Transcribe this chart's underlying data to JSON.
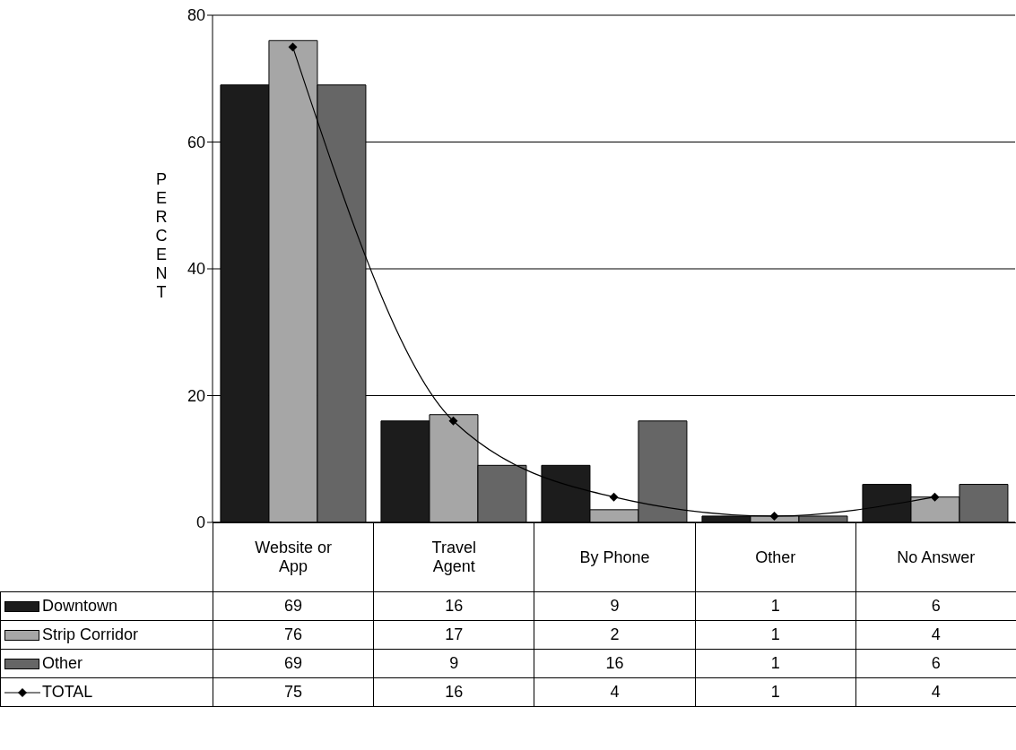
{
  "chart_data": {
    "type": "bar",
    "ylabel": "PERCENT",
    "categories": [
      "Website or App",
      "Travel Agent",
      "By Phone",
      "Other",
      "No Answer"
    ],
    "series": [
      {
        "name": "Downtown",
        "color": "#1c1c1c",
        "values": [
          69,
          16,
          9,
          1,
          6
        ]
      },
      {
        "name": "Strip Corridor",
        "color": "#a6a6a6",
        "values": [
          76,
          17,
          2,
          1,
          4
        ]
      },
      {
        "name": "Other",
        "color": "#666666",
        "values": [
          69,
          9,
          16,
          1,
          6
        ]
      },
      {
        "name": "TOTAL",
        "type": "line",
        "color": "#000000",
        "values": [
          75,
          16,
          4,
          1,
          4
        ]
      }
    ],
    "ylim": [
      0,
      80
    ],
    "yticks": [
      0,
      20,
      40,
      60,
      80
    ],
    "grid": "y",
    "legend": "bottom",
    "marker": "diamond",
    "line_style": "solid",
    "data_labels": true
  }
}
